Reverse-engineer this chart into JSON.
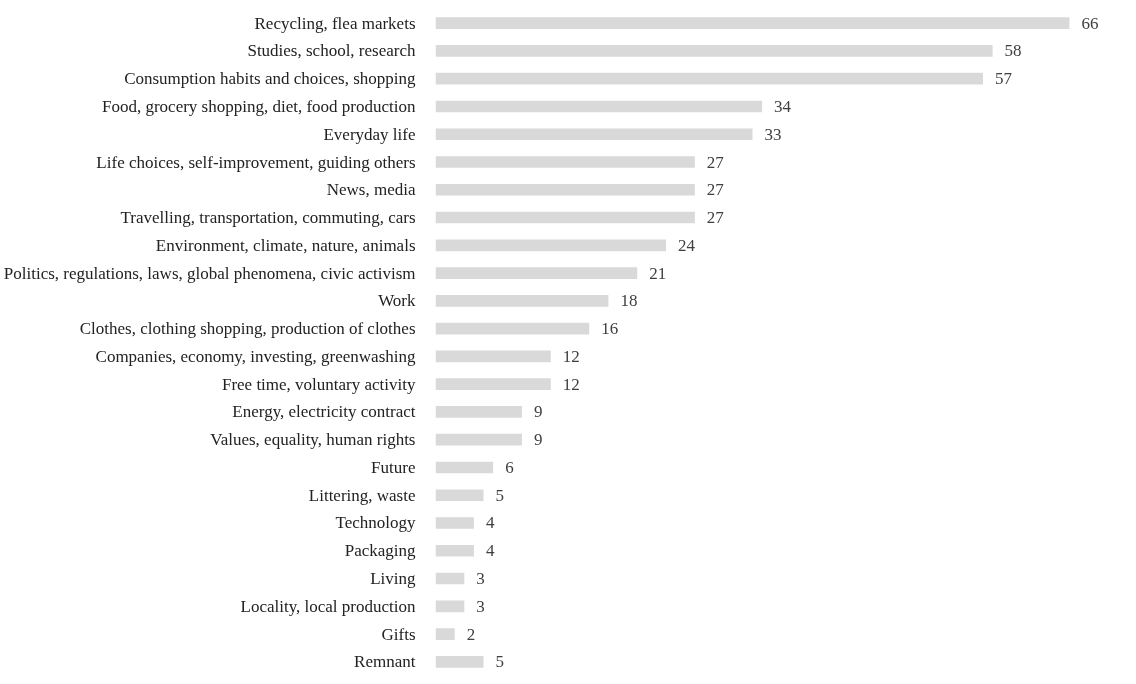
{
  "chart_data": {
    "type": "bar",
    "orientation": "horizontal",
    "data_labels": true,
    "categories": [
      "Recycling, flea markets",
      "Studies, school, research",
      "Consumption habits and choices, shopping",
      "Food, grocery shopping, diet, food production",
      "Everyday life",
      "Life choices, self-improvement, guiding others",
      "News, media",
      "Travelling, transportation, commuting, cars",
      "Environment, climate, nature, animals",
      "Politics, regulations, laws, global phenomena, civic activism",
      "Work",
      "Clothes, clothing shopping, production of clothes",
      "Companies, economy, investing, greenwashing",
      "Free time, voluntary activity",
      "Energy, electricity contract",
      "Values, equality, human rights",
      "Future",
      "Littering, waste",
      "Technology",
      "Packaging",
      "Living",
      "Locality, local production",
      "Gifts",
      "Remnant"
    ],
    "values": [
      66,
      58,
      57,
      34,
      33,
      27,
      27,
      27,
      24,
      21,
      18,
      16,
      12,
      12,
      9,
      9,
      6,
      5,
      4,
      4,
      3,
      3,
      2,
      5
    ],
    "color": "#d9d9d9"
  }
}
